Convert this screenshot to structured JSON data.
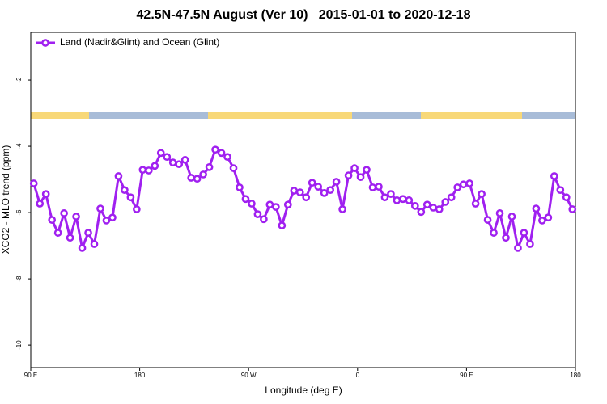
{
  "chart_data": {
    "type": "line",
    "title": "42.5N-47.5N August (Ver 10)   2015-01-01 to 2020-12-18",
    "xlabel": "Longitude (deg E)",
    "ylabel": "XCO2 - MLO trend (ppm)",
    "xlim": [
      90,
      540
    ],
    "ylim": [
      -10.68,
      -0.56
    ],
    "xticks": [
      {
        "value": 90,
        "label": "90 E"
      },
      {
        "value": 180,
        "label": "180"
      },
      {
        "value": 270,
        "label": "90 W"
      },
      {
        "value": 360,
        "label": "0"
      },
      {
        "value": 450,
        "label": "90 E"
      },
      {
        "value": 540,
        "label": "180"
      }
    ],
    "yticks": [
      -2,
      -4,
      -6,
      -8,
      -10
    ],
    "legend": "upper left",
    "x": [
      92.5,
      97.5,
      102.5,
      107.5,
      112.5,
      117.5,
      122.5,
      127.5,
      132.5,
      137.5,
      142.5,
      147.5,
      152.5,
      157.5,
      162.5,
      167.5,
      172.5,
      177.5,
      182.5,
      187.5,
      192.5,
      197.5,
      202.5,
      207.5,
      212.5,
      217.5,
      222.5,
      227.5,
      232.5,
      237.5,
      242.5,
      247.5,
      252.5,
      257.5,
      262.5,
      267.5,
      272.5,
      277.5,
      282.5,
      287.5,
      292.5,
      297.5,
      302.5,
      307.5,
      312.5,
      317.5,
      322.5,
      327.5,
      332.5,
      337.5,
      342.5,
      347.5,
      352.5,
      357.5,
      362.5,
      367.5,
      372.5,
      377.5,
      382.5,
      387.5,
      392.5,
      397.5,
      402.5,
      407.5,
      412.5,
      417.5,
      422.5,
      427.5,
      432.5,
      437.5,
      442.5,
      447.5,
      452.5,
      457.5,
      462.5,
      467.5,
      472.5,
      477.5,
      482.5,
      487.5,
      492.5,
      497.5,
      502.5,
      507.5,
      512.5,
      517.5,
      522.5,
      527.5,
      532.5,
      537.5
    ],
    "series": [
      {
        "name": "Land (Nadir&Glint) and Ocean (Glint)",
        "color": "#a020f0",
        "values": [
          -5.12,
          -5.73,
          -5.44,
          -6.22,
          -6.61,
          -6.02,
          -6.76,
          -6.12,
          -7.07,
          -6.61,
          -6.95,
          -5.88,
          -6.24,
          -6.15,
          -4.9,
          -5.32,
          -5.54,
          -5.9,
          -4.71,
          -4.73,
          -4.59,
          -4.2,
          -4.32,
          -4.49,
          -4.54,
          -4.41,
          -4.95,
          -4.98,
          -4.85,
          -4.63,
          -4.1,
          -4.2,
          -4.32,
          -4.66,
          -5.24,
          -5.59,
          -5.73,
          -6.05,
          -6.2,
          -5.76,
          -5.83,
          -6.39,
          -5.76,
          -5.34,
          -5.39,
          -5.54,
          -5.1,
          -5.22,
          -5.41,
          -5.32,
          -5.07,
          -5.9,
          -4.88,
          -4.66,
          -4.93,
          -4.71,
          -5.24,
          -5.22,
          -5.54,
          -5.44,
          -5.63,
          -5.59,
          -5.63,
          -5.8,
          -5.98,
          -5.76,
          -5.85,
          -5.9,
          -5.68,
          -5.54,
          -5.24,
          -5.15,
          -5.12,
          -5.73,
          -5.44,
          -6.22,
          -6.61,
          -6.02,
          -6.76,
          -6.12,
          -7.07,
          -6.61,
          -6.95,
          -5.88,
          -6.24,
          -6.15,
          -4.9,
          -5.32,
          -5.54,
          -5.9
        ]
      }
    ]
  }
}
